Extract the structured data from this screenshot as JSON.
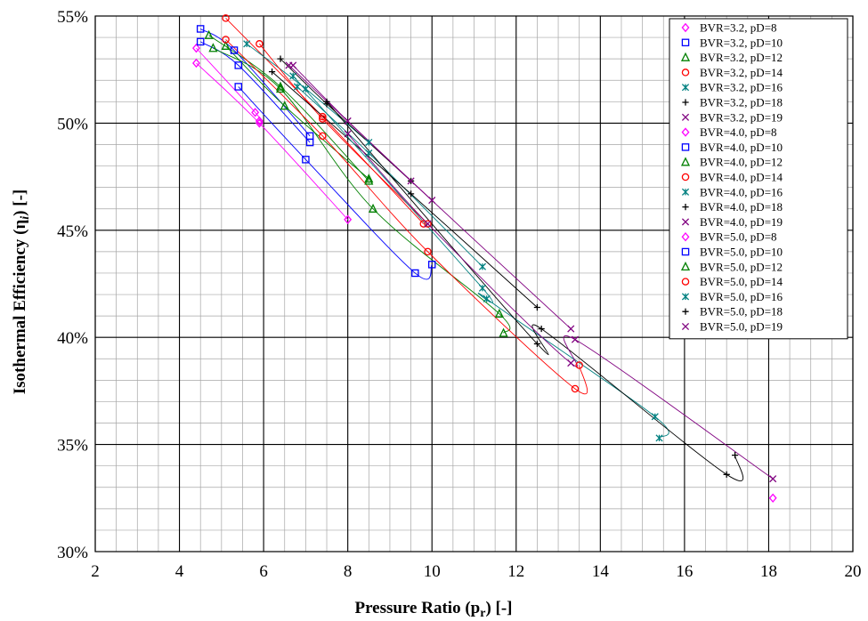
{
  "chart_data": {
    "type": "scatter",
    "xlabel_main": "Pressure Ratio (p",
    "xlabel_sub": "r",
    "xlabel_tail": ") [-]",
    "ylabel_main": "Isothermal Efficiency (η",
    "ylabel_sub": "i",
    "ylabel_tail": ") [-]",
    "xlim": [
      2,
      20
    ],
    "ylim": [
      30,
      55
    ],
    "xticks": [
      2,
      4,
      6,
      8,
      10,
      12,
      14,
      16,
      18,
      20
    ],
    "yticks": [
      30,
      35,
      40,
      45,
      50,
      55
    ],
    "ytick_labels": [
      "30%",
      "35%",
      "40%",
      "45%",
      "50%",
      "55%"
    ],
    "grid": true,
    "legend_position": "top-right",
    "series": [
      {
        "name": "BVR=3.2, pD=8",
        "marker": "diamond",
        "color": "#ff00ff",
        "x": [
          4.4,
          5.8,
          5.9
        ],
        "y": [
          53.5,
          50.5,
          50.1
        ]
      },
      {
        "name": "BVR=3.2, pD=10",
        "marker": "square",
        "color": "#0000ff",
        "x": [
          4.5,
          5.3,
          7.1
        ],
        "y": [
          54.4,
          53.4,
          49.4
        ]
      },
      {
        "name": "BVR=3.2, pD=12",
        "marker": "triangle",
        "color": "#008000",
        "x": [
          4.7,
          6.4,
          8.5
        ],
        "y": [
          54.1,
          51.7,
          47.3
        ]
      },
      {
        "name": "BVR=3.2, pD=14",
        "marker": "circle",
        "color": "#ff0000",
        "x": [
          5.1,
          7.4,
          9.8
        ],
        "y": [
          54.9,
          50.3,
          45.3
        ]
      },
      {
        "name": "BVR=3.2, pD=16",
        "marker": "star",
        "color": "#008080",
        "x": [
          5.6,
          7.0,
          8.5
        ],
        "y": [
          53.7,
          51.6,
          49.1
        ]
      },
      {
        "name": "BVR=3.2, pD=18",
        "marker": "plus",
        "color": "#000000",
        "x": [
          6.4,
          7.5,
          9.5
        ],
        "y": [
          53.0,
          50.9,
          47.3
        ]
      },
      {
        "name": "BVR=3.2, pD=19",
        "marker": "cross",
        "color": "#800080",
        "x": [
          6.7,
          8.0,
          10.0
        ],
        "y": [
          52.7,
          50.1,
          46.4
        ]
      },
      {
        "name": "BVR=4.0, pD=8",
        "marker": "diamond",
        "color": "#ff00ff",
        "x": [
          4.4,
          5.9,
          8.0
        ],
        "y": [
          52.8,
          50.0,
          45.5
        ]
      },
      {
        "name": "BVR=4.0, pD=10",
        "marker": "square",
        "color": "#0000ff",
        "x": [
          4.5,
          5.4,
          7.1
        ],
        "y": [
          53.8,
          52.7,
          49.1
        ]
      },
      {
        "name": "BVR=4.0, pD=12",
        "marker": "triangle",
        "color": "#008000",
        "x": [
          5.1,
          6.5,
          8.5
        ],
        "y": [
          53.6,
          50.8,
          47.4
        ]
      },
      {
        "name": "BVR=4.0, pD=14",
        "marker": "circle",
        "color": "#ff0000",
        "x": [
          5.9,
          7.4,
          9.9
        ],
        "y": [
          53.7,
          50.2,
          45.3
        ]
      },
      {
        "name": "BVR=4.0, pD=16",
        "marker": "star",
        "color": "#008080",
        "x": [
          6.8,
          8.5,
          11.2
        ],
        "y": [
          51.7,
          48.6,
          43.3
        ]
      },
      {
        "name": "BVR=4.0, pD=18",
        "marker": "plus",
        "color": "#000000",
        "x": [
          6.2,
          9.5,
          12.5
        ],
        "y": [
          52.4,
          46.7,
          41.4
        ]
      },
      {
        "name": "BVR=4.0, pD=19",
        "marker": "cross",
        "color": "#800080",
        "x": [
          6.6,
          9.5,
          13.3
        ],
        "y": [
          52.7,
          47.3,
          40.4
        ]
      },
      {
        "name": "BVR=5.0, pD=8",
        "marker": "diamond",
        "color": "#ff00ff",
        "x": [
          18.1
        ],
        "y": [
          32.5
        ]
      },
      {
        "name": "BVR=5.0, pD=10",
        "marker": "square",
        "color": "#0000ff",
        "x": [
          5.4,
          7.0,
          9.6,
          10.0
        ],
        "y": [
          51.7,
          48.3,
          43.0,
          43.4
        ]
      },
      {
        "name": "BVR=5.0, pD=12",
        "marker": "triangle",
        "color": "#008000",
        "x": [
          4.8,
          6.4,
          8.6,
          11.6,
          11.7
        ],
        "y": [
          53.5,
          51.6,
          46.0,
          41.1,
          40.2
        ]
      },
      {
        "name": "BVR=5.0, pD=14",
        "marker": "circle",
        "color": "#ff0000",
        "x": [
          5.1,
          7.4,
          9.9,
          13.4,
          13.5
        ],
        "y": [
          53.9,
          49.4,
          44.0,
          37.6,
          38.7
        ]
      },
      {
        "name": "BVR=5.0, pD=16",
        "marker": "star",
        "color": "#008080",
        "x": [
          6.7,
          11.2,
          11.3,
          15.3,
          15.4
        ],
        "y": [
          52.2,
          42.3,
          41.8,
          36.3,
          35.3
        ]
      },
      {
        "name": "BVR=5.0, pD=18",
        "marker": "plus",
        "color": "#000000",
        "x": [
          7.5,
          12.6,
          12.5,
          17.0,
          17.2
        ],
        "y": [
          51.0,
          40.4,
          39.7,
          33.6,
          34.5
        ]
      },
      {
        "name": "BVR=5.0, pD=19",
        "marker": "cross",
        "color": "#800080",
        "x": [
          8.0,
          9.9,
          13.3,
          13.4,
          18.1
        ],
        "y": [
          49.5,
          45.3,
          38.8,
          39.9,
          33.4
        ]
      }
    ]
  }
}
